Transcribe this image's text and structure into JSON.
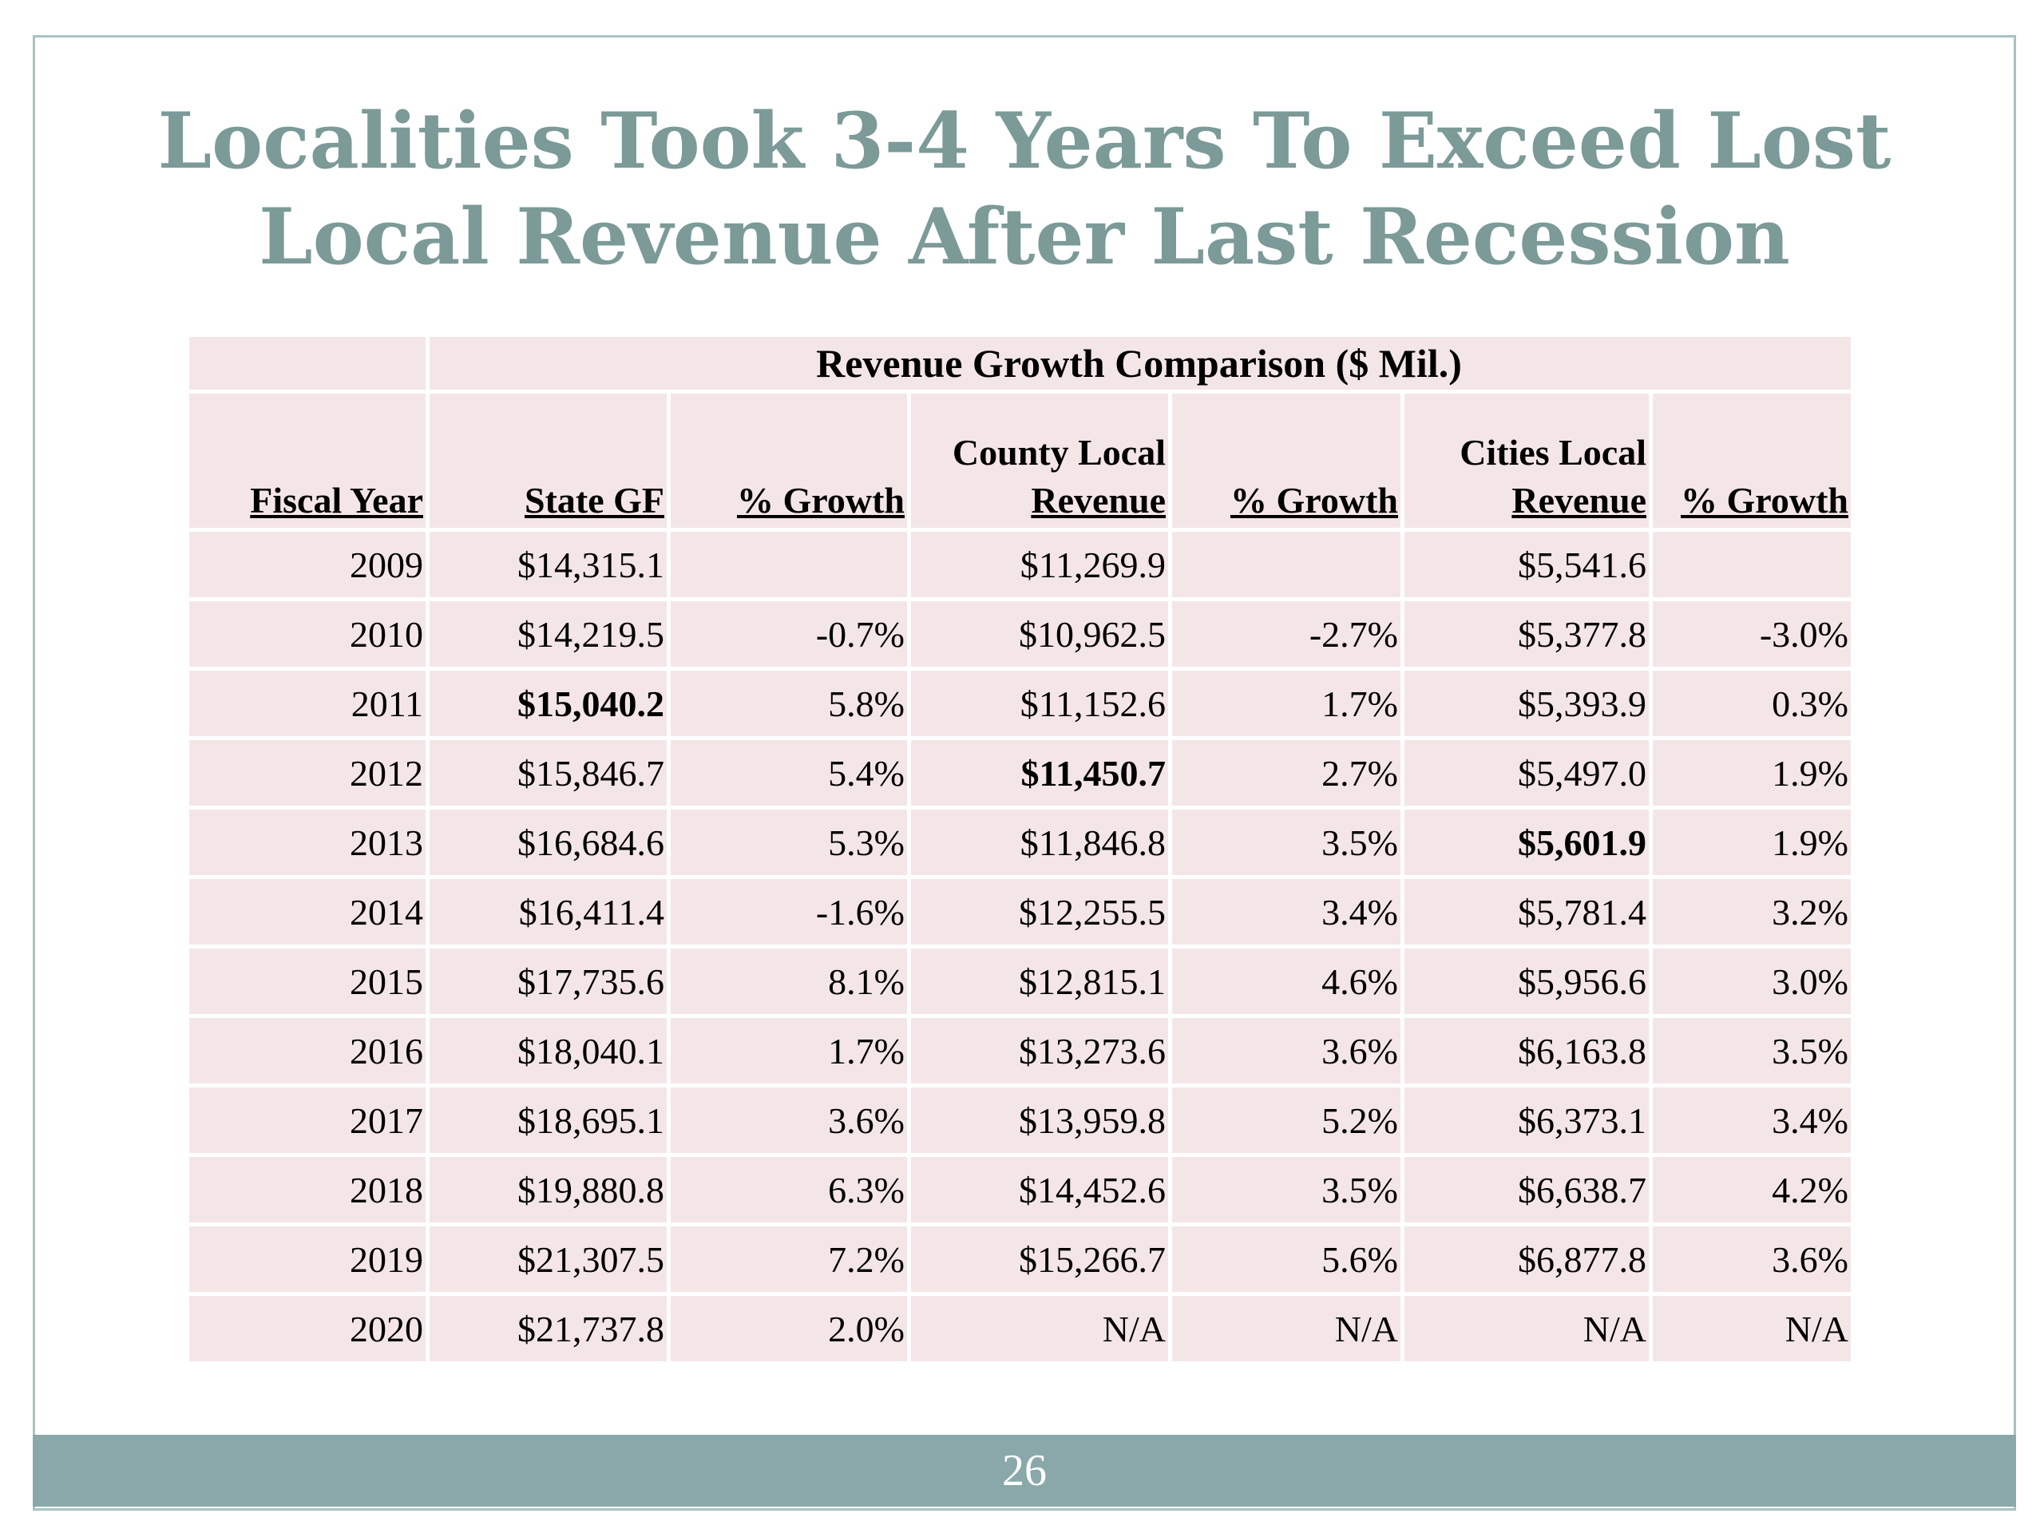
{
  "slide": {
    "title_line1": "Localities Took 3-4 Years To Exceed Lost",
    "title_line2": "Local Revenue After Last Recession",
    "page_number": "26"
  },
  "table": {
    "caption": "Revenue Growth Comparison ($ Mil.)",
    "headers": {
      "fiscal_year": "Fiscal Year",
      "state_gf": "State GF",
      "state_growth": "% Growth",
      "county_line1": "County Local",
      "county_line2": "Revenue",
      "county_growth": "% Growth",
      "cities_line1": "Cities Local",
      "cities_line2": "Revenue",
      "cities_growth": "% Growth"
    },
    "rows": [
      [
        "2009",
        "$14,315.1",
        "",
        "$11,269.9",
        "",
        "$5,541.6",
        ""
      ],
      [
        "2010",
        "$14,219.5",
        "-0.7%",
        "$10,962.5",
        "-2.7%",
        "$5,377.8",
        "-3.0%"
      ],
      [
        "2011",
        "$15,040.2",
        "5.8%",
        "$11,152.6",
        "1.7%",
        "$5,393.9",
        "0.3%"
      ],
      [
        "2012",
        "$15,846.7",
        "5.4%",
        "$11,450.7",
        "2.7%",
        "$5,497.0",
        "1.9%"
      ],
      [
        "2013",
        "$16,684.6",
        "5.3%",
        "$11,846.8",
        "3.5%",
        "$5,601.9",
        "1.9%"
      ],
      [
        "2014",
        "$16,411.4",
        "-1.6%",
        "$12,255.5",
        "3.4%",
        "$5,781.4",
        "3.2%"
      ],
      [
        "2015",
        "$17,735.6",
        "8.1%",
        "$12,815.1",
        "4.6%",
        "$5,956.6",
        "3.0%"
      ],
      [
        "2016",
        "$18,040.1",
        "1.7%",
        "$13,273.6",
        "3.6%",
        "$6,163.8",
        "3.5%"
      ],
      [
        "2017",
        "$18,695.1",
        "3.6%",
        "$13,959.8",
        "5.2%",
        "$6,373.1",
        "3.4%"
      ],
      [
        "2018",
        "$19,880.8",
        "6.3%",
        "$14,452.6",
        "3.5%",
        "$6,638.7",
        "4.2%"
      ],
      [
        "2019",
        "$21,307.5",
        "7.2%",
        "$15,266.7",
        "5.6%",
        "$6,877.8",
        "3.6%"
      ],
      [
        "2020",
        "$21,737.8",
        "2.0%",
        "N/A",
        "N/A",
        "N/A",
        "N/A"
      ]
    ],
    "bold_cells": [
      [
        2,
        1
      ],
      [
        3,
        3
      ],
      [
        4,
        5
      ]
    ]
  },
  "colors": {
    "title": "#7b9a98",
    "cell_background": "#f4e6e7",
    "footer_bar": "#8aa8a9",
    "slide_border": "#a9c2c2"
  }
}
